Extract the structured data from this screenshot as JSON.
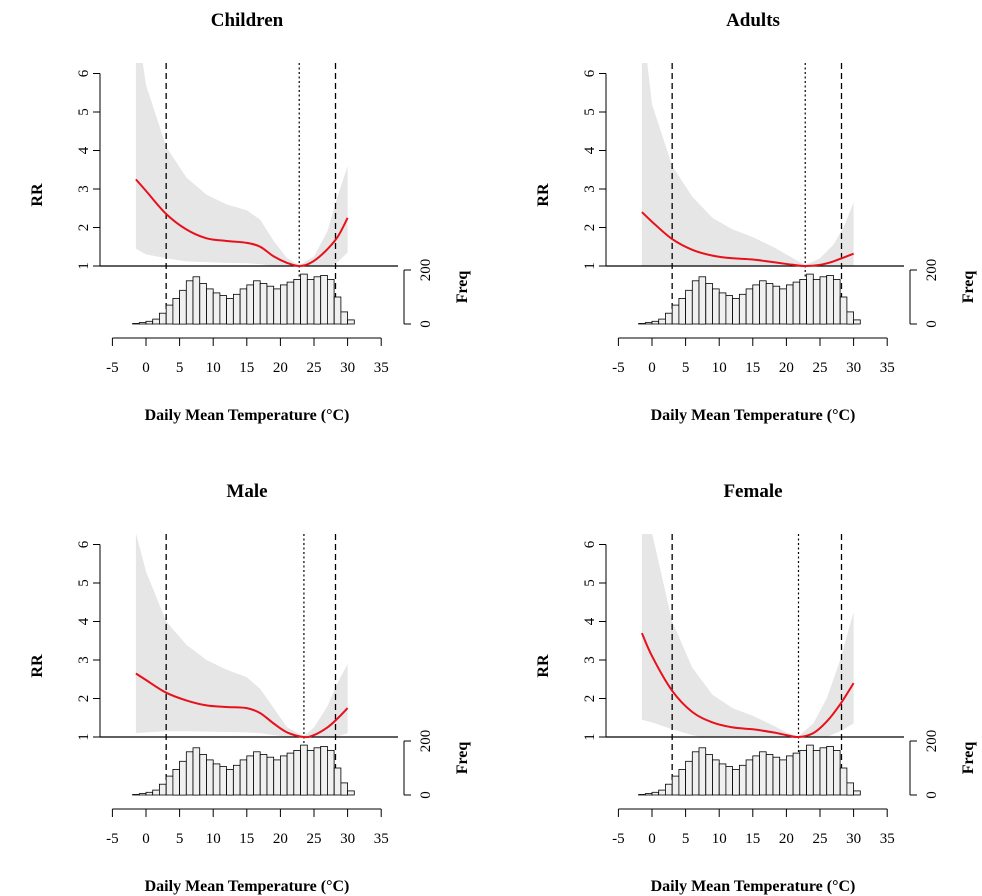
{
  "colors": {
    "curve": "#e8101a",
    "ci_band": "#e6e6e6",
    "hist_fill": "#f0f0f0",
    "axis": "#000000"
  },
  "chart_data": [
    {
      "type": "line",
      "title": "Children",
      "xlabel": "Daily Mean Temperature (°C)",
      "ylabel": "RR",
      "hist_label": "Freq",
      "xlim": [
        -5,
        35
      ],
      "ylim": [
        1,
        6
      ],
      "x_ticks": [
        -5,
        0,
        5,
        10,
        15,
        20,
        25,
        30,
        35
      ],
      "y_ticks": [
        1,
        2,
        3,
        4,
        5,
        6
      ],
      "freq_ticks": [
        0,
        200
      ],
      "percentile_lines": [
        3,
        28.2
      ],
      "mmt_line": 22.8,
      "curve": {
        "x": [
          -1.5,
          0,
          3,
          6,
          9,
          12,
          15,
          17,
          19,
          21,
          22.8,
          24.5,
          26.5,
          28.5,
          30
        ],
        "y": [
          3.25,
          2.95,
          2.35,
          1.95,
          1.72,
          1.65,
          1.6,
          1.5,
          1.25,
          1.08,
          1.0,
          1.08,
          1.35,
          1.75,
          2.25
        ]
      },
      "ci_upper": {
        "x": [
          -1.5,
          0,
          3,
          6,
          9,
          12,
          15,
          17,
          19,
          21,
          22.8,
          25,
          27,
          28.5,
          30
        ],
        "y": [
          7.5,
          5.7,
          4.1,
          3.3,
          2.85,
          2.6,
          2.45,
          2.2,
          1.65,
          1.2,
          1.02,
          1.25,
          1.9,
          2.8,
          3.6
        ]
      },
      "ci_lower": {
        "x": [
          -1.5,
          0,
          3,
          6,
          9,
          12,
          15,
          17,
          19,
          21,
          22.8,
          25,
          27,
          28.5,
          30
        ],
        "y": [
          1.45,
          1.3,
          1.2,
          1.12,
          1.1,
          1.08,
          1.07,
          1.05,
          1.0,
          0.97,
          0.98,
          0.92,
          0.95,
          1.1,
          1.35
        ]
      }
    },
    {
      "type": "line",
      "title": "Adults",
      "xlabel": "Daily Mean Temperature (°C)",
      "ylabel": "RR",
      "hist_label": "Freq",
      "xlim": [
        -5,
        35
      ],
      "ylim": [
        1,
        6
      ],
      "x_ticks": [
        -5,
        0,
        5,
        10,
        15,
        20,
        25,
        30,
        35
      ],
      "y_ticks": [
        1,
        2,
        3,
        4,
        5,
        6
      ],
      "freq_ticks": [
        0,
        200
      ],
      "percentile_lines": [
        3,
        28.2
      ],
      "mmt_line": 22.8,
      "curve": {
        "x": [
          -1.5,
          0,
          3,
          6,
          9,
          12,
          15,
          18,
          21,
          22.8,
          25,
          27,
          30
        ],
        "y": [
          2.4,
          2.15,
          1.7,
          1.42,
          1.27,
          1.2,
          1.17,
          1.1,
          1.03,
          1.0,
          1.03,
          1.12,
          1.32
        ]
      },
      "ci_upper": {
        "x": [
          -1.5,
          0,
          3,
          6,
          9,
          12,
          15,
          18,
          21,
          22.8,
          25,
          27,
          28.5,
          30
        ],
        "y": [
          7.5,
          5.2,
          3.6,
          2.8,
          2.25,
          1.95,
          1.75,
          1.5,
          1.2,
          1.02,
          1.2,
          1.55,
          2.0,
          2.65
        ]
      },
      "ci_lower": {
        "x": [
          -1.5,
          0,
          3,
          6,
          9,
          12,
          15,
          18,
          21,
          22.8,
          25,
          27,
          30
        ],
        "y": [
          0.8,
          0.82,
          0.83,
          0.85,
          0.86,
          0.87,
          0.88,
          0.9,
          0.95,
          0.98,
          0.92,
          0.88,
          0.83
        ]
      }
    },
    {
      "type": "line",
      "title": "Male",
      "xlabel": "Daily Mean Temperature (°C)",
      "ylabel": "RR",
      "hist_label": "Freq",
      "xlim": [
        -5,
        35
      ],
      "ylim": [
        1,
        6
      ],
      "x_ticks": [
        -5,
        0,
        5,
        10,
        15,
        20,
        25,
        30,
        35
      ],
      "y_ticks": [
        1,
        2,
        3,
        4,
        5,
        6
      ],
      "freq_ticks": [
        0,
        200
      ],
      "percentile_lines": [
        3,
        28.2
      ],
      "mmt_line": 23.5,
      "curve": {
        "x": [
          -1.5,
          0,
          3,
          6,
          9,
          12,
          15,
          17,
          19,
          21,
          23.5,
          25,
          27,
          28.5,
          30
        ],
        "y": [
          2.65,
          2.48,
          2.15,
          1.95,
          1.82,
          1.78,
          1.75,
          1.62,
          1.35,
          1.12,
          1.0,
          1.05,
          1.25,
          1.48,
          1.75
        ]
      },
      "ci_upper": {
        "x": [
          -1.5,
          0,
          3,
          6,
          9,
          12,
          15,
          17,
          19,
          21,
          23.5,
          25,
          27,
          28.5,
          30
        ],
        "y": [
          6.3,
          5.3,
          4.0,
          3.4,
          3.0,
          2.75,
          2.55,
          2.25,
          1.75,
          1.25,
          1.02,
          1.25,
          1.8,
          2.4,
          2.9
        ]
      },
      "ci_lower": {
        "x": [
          -1.5,
          0,
          3,
          6,
          9,
          12,
          15,
          17,
          19,
          21,
          23.5,
          25,
          27,
          30
        ],
        "y": [
          1.1,
          1.12,
          1.15,
          1.15,
          1.14,
          1.13,
          1.12,
          1.1,
          1.05,
          1.0,
          0.98,
          0.9,
          0.92,
          1.1
        ]
      }
    },
    {
      "type": "line",
      "title": "Female",
      "xlabel": "Daily Mean Temperature (°C)",
      "ylabel": "RR",
      "hist_label": "Freq",
      "xlim": [
        -5,
        35
      ],
      "ylim": [
        1,
        6
      ],
      "x_ticks": [
        -5,
        0,
        5,
        10,
        15,
        20,
        25,
        30,
        35
      ],
      "y_ticks": [
        1,
        2,
        3,
        4,
        5,
        6
      ],
      "freq_ticks": [
        0,
        200
      ],
      "percentile_lines": [
        3,
        28.2
      ],
      "mmt_line": 21.8,
      "curve": {
        "x": [
          -1.5,
          0,
          3,
          6,
          9,
          12,
          15,
          18,
          20,
          21.8,
          24,
          26,
          28,
          30
        ],
        "y": [
          3.7,
          3.1,
          2.2,
          1.65,
          1.38,
          1.25,
          1.2,
          1.12,
          1.05,
          1.0,
          1.1,
          1.4,
          1.85,
          2.4
        ]
      },
      "ci_upper": {
        "x": [
          -1.5,
          0,
          3,
          6,
          9,
          12,
          15,
          18,
          20,
          21.8,
          24,
          26,
          28,
          30
        ],
        "y": [
          7.5,
          6.3,
          4.0,
          2.8,
          2.1,
          1.75,
          1.55,
          1.3,
          1.12,
          1.02,
          1.35,
          2.0,
          3.0,
          4.25
        ]
      },
      "ci_lower": {
        "x": [
          -1.5,
          0,
          3,
          6,
          9,
          12,
          15,
          18,
          20,
          21.8,
          24,
          26,
          28,
          30
        ],
        "y": [
          1.45,
          1.38,
          1.2,
          1.05,
          0.95,
          0.9,
          0.87,
          0.88,
          0.92,
          0.97,
          0.95,
          1.0,
          1.15,
          1.35
        ]
      }
    }
  ],
  "histogram": {
    "bin_starts": [
      -2,
      -1,
      0,
      1,
      2,
      3,
      4,
      5,
      6,
      7,
      8,
      9,
      10,
      11,
      12,
      13,
      14,
      15,
      16,
      17,
      18,
      19,
      20,
      21,
      22,
      23,
      24,
      25,
      26,
      27,
      28,
      29,
      30
    ],
    "counts": [
      2,
      5,
      10,
      18,
      40,
      70,
      95,
      125,
      160,
      175,
      150,
      130,
      115,
      105,
      95,
      110,
      130,
      145,
      160,
      150,
      140,
      130,
      145,
      155,
      165,
      185,
      165,
      175,
      180,
      165,
      100,
      45,
      15
    ],
    "bin_width": 1
  }
}
